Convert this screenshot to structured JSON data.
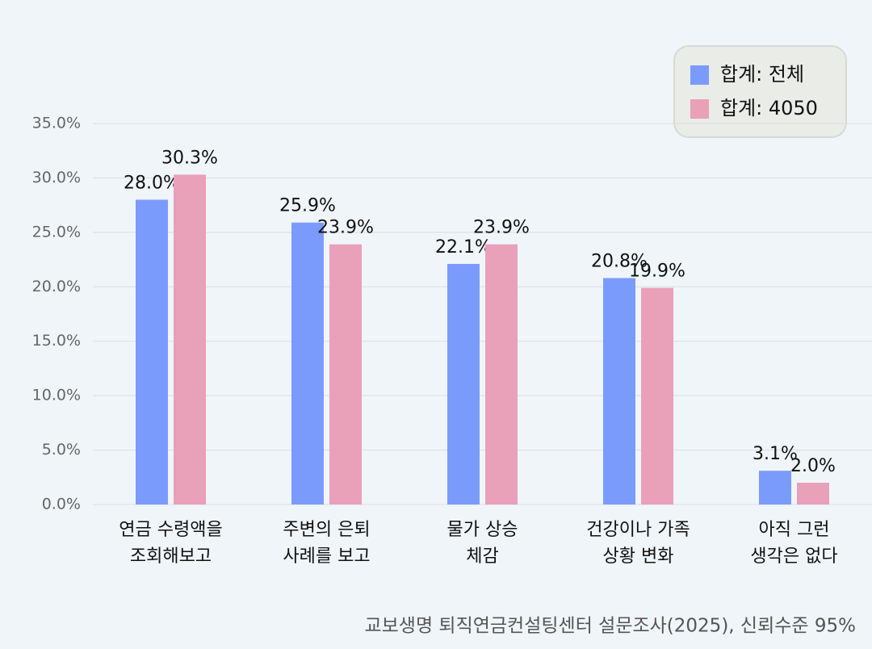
{
  "chart_data": {
    "type": "bar",
    "categories": [
      [
        "연금 수령액을",
        "조회해보고"
      ],
      [
        "주변의 은퇴",
        "사례를 보고"
      ],
      [
        "물가 상승",
        "체감"
      ],
      [
        "건강이나 가족",
        "상황 변화"
      ],
      [
        "아직 그런",
        "생각은 없다"
      ]
    ],
    "series": [
      {
        "name": "합계: 전체",
        "color": "#7b9bfc",
        "values": [
          28.0,
          25.9,
          22.1,
          20.8,
          3.1
        ],
        "value_labels": [
          "28.0%",
          "25.9%",
          "22.1%",
          "20.8%",
          "3.1%"
        ]
      },
      {
        "name": "합계: 4050",
        "color": "#e9a0b9",
        "values": [
          30.3,
          23.9,
          23.9,
          19.9,
          2.0
        ],
        "value_labels": [
          "30.3%",
          "23.9%",
          "23.9%",
          "19.9%",
          "2.0%"
        ]
      }
    ],
    "ylim": [
      0,
      35
    ],
    "yticks": [
      {
        "value": 0,
        "label": "0.0%"
      },
      {
        "value": 5,
        "label": "5.0%"
      },
      {
        "value": 10,
        "label": "10.0%"
      },
      {
        "value": 15,
        "label": "15.0%"
      },
      {
        "value": 20,
        "label": "20.0%"
      },
      {
        "value": 25,
        "label": "25.0%"
      },
      {
        "value": 30,
        "label": "30.0%"
      },
      {
        "value": 35,
        "label": "35.0%"
      }
    ],
    "grid": true,
    "legend": "top-right",
    "source": "교보생명 퇴직연금컨설팅센터 설문조사(2025), 신뢰수준 95%"
  }
}
